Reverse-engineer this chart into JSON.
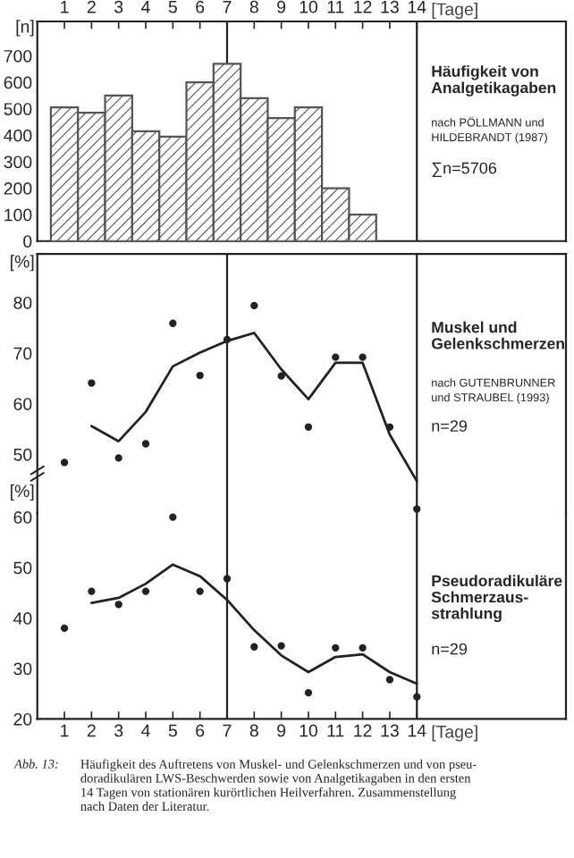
{
  "chart_data": [
    {
      "type": "bar",
      "title": "Häufigkeit von\nAnalgetikagaben",
      "ylabel": "[n]",
      "xlabel": "[Tage]",
      "x": [
        1,
        2,
        3,
        4,
        5,
        6,
        7,
        8,
        9,
        10,
        11,
        12
      ],
      "values": [
        505,
        485,
        550,
        415,
        395,
        600,
        670,
        540,
        465,
        505,
        200,
        100
      ],
      "color": "#555555",
      "xlim": [
        0,
        19.5
      ],
      "xticks": [
        1,
        2,
        3,
        4,
        5,
        6,
        7,
        8,
        9,
        10,
        11,
        12,
        13,
        14
      ],
      "ylim": [
        0,
        830
      ],
      "yticks": [
        0,
        100,
        200,
        300,
        400,
        500,
        600,
        700
      ],
      "ref_lines": [
        {
          "axis": "x",
          "value": 7
        },
        {
          "axis": "x",
          "value": 14
        }
      ],
      "annotations": [
        "nach PÖLLMANN und\nHILDEBRANDT (1987)",
        "∑n=5706"
      ]
    },
    {
      "type": "line",
      "title": "Muskel und\nGelenkschmerzen",
      "ylabel": "[%]",
      "x": [
        1,
        2,
        3,
        4,
        5,
        6,
        7,
        8,
        9,
        10,
        11,
        12,
        13,
        14
      ],
      "series": [
        {
          "type": "scatter",
          "marker": "circle",
          "color": "#222222",
          "values": [
            48.4,
            64.1,
            49.3,
            52.1,
            75.9,
            65.6,
            72.7,
            79.4,
            65.5,
            55.4,
            69.2,
            69.2,
            55.4,
            39.2
          ]
        },
        {
          "type": "line",
          "color": "#222222",
          "values": [
            null,
            55.6,
            52.6,
            58.4,
            67.4,
            70.1,
            72.4,
            74.0,
            66.8,
            60.9,
            68.1,
            68.1,
            53.9,
            44.7
          ]
        }
      ],
      "xlim": [
        0,
        19.5
      ],
      "xticks": [
        1,
        2,
        3,
        4,
        5,
        6,
        7,
        8,
        9,
        10,
        11,
        12,
        13,
        14
      ],
      "ylim": [
        38.4,
        89.6
      ],
      "yticks": [
        50,
        60,
        70,
        80
      ],
      "tick_labels": "y",
      "ref_lines": [
        {
          "axis": "x",
          "value": 7
        },
        {
          "axis": "x",
          "value": 14
        }
      ],
      "annotations": [
        "nach GUTENBRUNNER\nund STRAUBEL (1993)",
        "n=29"
      ]
    },
    {
      "type": "line",
      "title": "Pseudoradikuläre\nSchmerzaus-\nstrahlung",
      "ylabel": "[%]",
      "xlabel": "[Tage]",
      "x": [
        1,
        2,
        3,
        4,
        5,
        6,
        7,
        8,
        9,
        10,
        11,
        12,
        13,
        14
      ],
      "series": [
        {
          "type": "scatter",
          "marker": "circle",
          "color": "#222222",
          "values": [
            38.0,
            45.3,
            42.7,
            45.3,
            60.0,
            45.3,
            47.8,
            34.3,
            34.5,
            25.2,
            34.1,
            34.1,
            27.8,
            24.4
          ]
        },
        {
          "type": "line",
          "color": "#222222",
          "values": [
            null,
            43.0,
            44.0,
            46.8,
            50.6,
            48.3,
            43.6,
            37.6,
            32.6,
            29.3,
            32.3,
            32.8,
            29.3,
            27.0
          ]
        }
      ],
      "xlim": [
        0,
        19.5
      ],
      "xticks": [
        1,
        2,
        3,
        4,
        5,
        6,
        7,
        8,
        9,
        10,
        11,
        12,
        13,
        14
      ],
      "ylim": [
        20,
        60.8
      ],
      "yticks": [
        20,
        30,
        40,
        50,
        60
      ],
      "ref_lines": [
        {
          "axis": "x",
          "value": 7
        },
        {
          "axis": "x",
          "value": 14
        }
      ],
      "annotations": [
        "n=29",
        "Abb. 13:",
        "Häufigkeit des Auftretens von Muskel- und Gelenkschmerzen und von pseu-\ndoradikulären LWS-Beschwerden sowie von Analgetikagaben in den ersten\n14 Tagen von stationären kurörtlichen Heilverfahren. Zusammenstellung\nnach Daten der Literatur."
      ]
    }
  ]
}
